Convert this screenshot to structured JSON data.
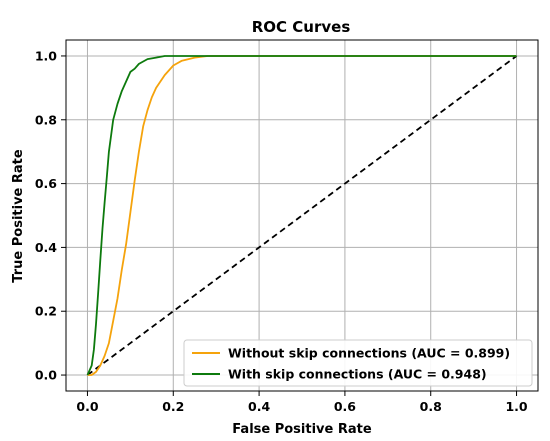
{
  "chart_data": {
    "type": "line",
    "title": "ROC Curves",
    "xlabel": "False Positive Rate",
    "ylabel": "True Positive Rate",
    "xlim": [
      -0.05,
      1.05
    ],
    "ylim": [
      -0.05,
      1.05
    ],
    "xticks": [
      "0.0",
      "0.2",
      "0.4",
      "0.6",
      "0.8",
      "1.0"
    ],
    "yticks": [
      "0.0",
      "0.2",
      "0.4",
      "0.6",
      "0.8",
      "1.0"
    ],
    "grid": true,
    "legend_position": "lower-right",
    "series": [
      {
        "name": "Without skip connections (AUC = 0.899)",
        "color": "#f5a30c",
        "x": [
          0.0,
          0.01,
          0.02,
          0.03,
          0.04,
          0.05,
          0.06,
          0.07,
          0.08,
          0.09,
          0.1,
          0.11,
          0.12,
          0.13,
          0.14,
          0.15,
          0.16,
          0.18,
          0.2,
          0.22,
          0.25,
          0.28,
          0.3,
          1.0
        ],
        "y": [
          0.0,
          0.0,
          0.01,
          0.03,
          0.06,
          0.1,
          0.17,
          0.24,
          0.33,
          0.41,
          0.51,
          0.61,
          0.7,
          0.78,
          0.83,
          0.87,
          0.9,
          0.94,
          0.97,
          0.985,
          0.995,
          1.0,
          1.0,
          1.0
        ]
      },
      {
        "name": "With skip connections (AUC = 0.948)",
        "color": "#0d7a0d",
        "x": [
          0.0,
          0.01,
          0.015,
          0.02,
          0.025,
          0.03,
          0.035,
          0.04,
          0.045,
          0.05,
          0.06,
          0.07,
          0.08,
          0.09,
          0.1,
          0.11,
          0.12,
          0.14,
          0.16,
          0.18,
          0.2,
          0.25,
          1.0
        ],
        "y": [
          0.0,
          0.03,
          0.08,
          0.16,
          0.26,
          0.36,
          0.46,
          0.54,
          0.62,
          0.7,
          0.8,
          0.85,
          0.89,
          0.92,
          0.95,
          0.96,
          0.975,
          0.99,
          0.995,
          1.0,
          1.0,
          1.0,
          1.0
        ]
      },
      {
        "name": "",
        "color": "#000000",
        "dashed": true,
        "x": [
          0.0,
          1.0
        ],
        "y": [
          0.0,
          1.0
        ]
      }
    ]
  }
}
